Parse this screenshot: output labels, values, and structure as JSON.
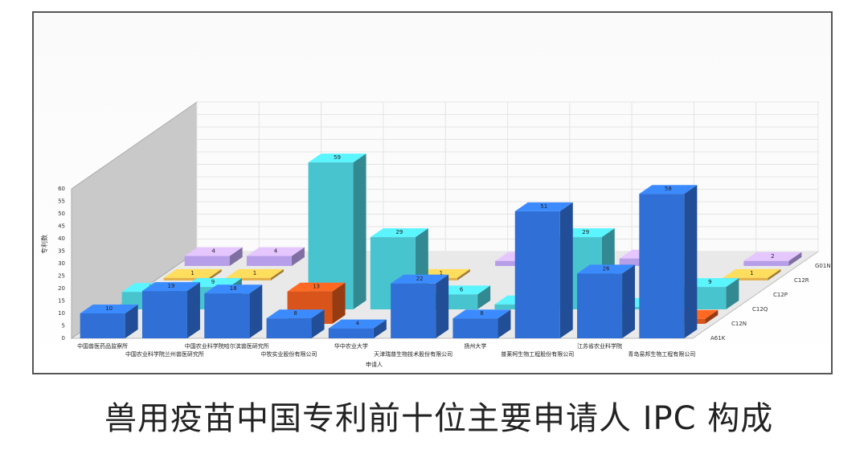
{
  "chart_data": {
    "type": "bar",
    "ylabel": "专利数",
    "yticks": [
      0,
      5,
      10,
      15,
      20,
      25,
      30,
      35,
      40,
      45,
      50,
      55,
      60
    ],
    "ylim": [
      0,
      60
    ],
    "grid": true,
    "categories": [
      "中国兽医药品监察所",
      "中国农业科学院兰州兽医研究所",
      "中国农业科学院哈尔滨兽医研究所",
      "中牧实业股份有限公司",
      "华中农业大学",
      "天津瑞普生物技术股份有限公司",
      "扬州大学",
      "普莱柯生物工程股份有限公司",
      "江苏省农业科学院",
      "青岛易邦生物工程有限公司"
    ],
    "extra_x_label": "申请人",
    "series": [
      {
        "name": "A61K",
        "color": "#2f6fd6",
        "values": [
          10,
          19,
          18,
          8,
          4,
          22,
          8,
          51,
          26,
          58
        ]
      },
      {
        "name": "C12N",
        "color": "#d8541a",
        "values": [
          null,
          null,
          null,
          13,
          null,
          null,
          null,
          null,
          null,
          2
        ]
      },
      {
        "name": "C12Q",
        "color": "#48c4cf",
        "values": [
          7,
          9,
          null,
          59,
          29,
          6,
          2,
          29,
          1,
          9
        ]
      },
      {
        "name": "C12P",
        "color": "#cfcfcf",
        "values": [
          null,
          null,
          null,
          null,
          null,
          null,
          null,
          null,
          null,
          null
        ]
      },
      {
        "name": "C12R",
        "color": "#e5b14a",
        "values": [
          1,
          1,
          null,
          null,
          1,
          null,
          null,
          null,
          null,
          1
        ]
      },
      {
        "name": "G01N",
        "color": "#b79ee8",
        "values": [
          4,
          4,
          null,
          null,
          null,
          2,
          null,
          3,
          null,
          2
        ]
      }
    ],
    "bar_labels": [
      [
        "10",
        "19",
        "18",
        "8",
        "4",
        "22",
        "8",
        "51",
        "26",
        "58"
      ],
      [
        "",
        "",
        "",
        "13",
        "",
        "",
        "",
        "",
        "",
        "2"
      ],
      [
        "7",
        "9",
        "",
        "59",
        "29",
        "6",
        "2",
        "29",
        "1",
        "9"
      ],
      [
        "",
        "",
        "",
        "",
        "",
        "",
        "",
        "",
        "",
        ""
      ],
      [
        "1",
        "1",
        "",
        "",
        "1",
        "",
        "",
        "",
        "",
        "1"
      ],
      [
        "4",
        "4",
        "",
        "",
        "",
        "2",
        "",
        "3",
        "",
        "2"
      ]
    ]
  },
  "caption": "兽用疫苗中国专利前十位主要申请人 IPC 构成"
}
